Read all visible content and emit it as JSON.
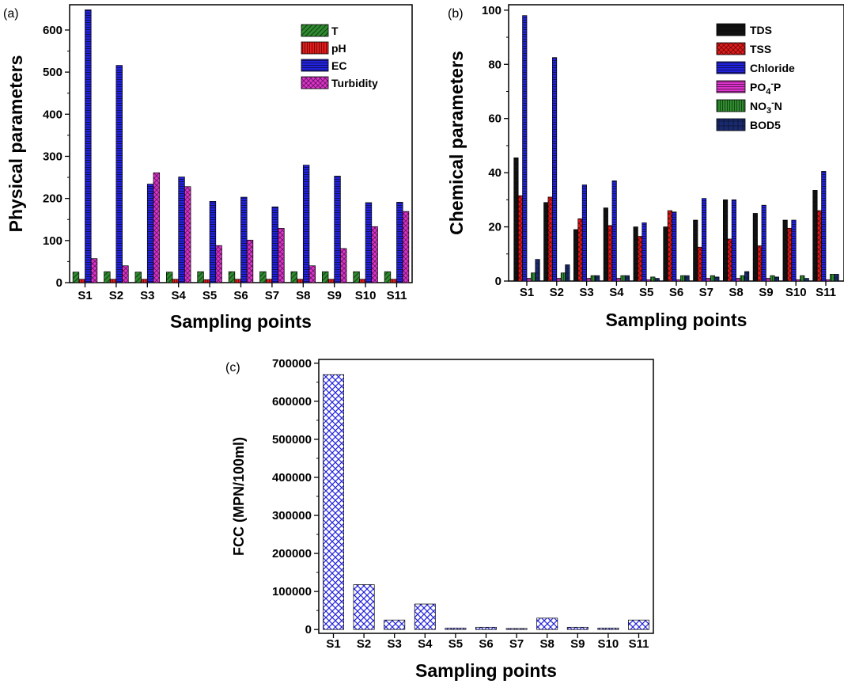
{
  "chart_data": [
    {
      "panel": "(a)",
      "type": "bar",
      "xlabel": "Sampling points",
      "ylabel": "Physical parameters",
      "ylim": [
        0,
        660
      ],
      "yticks": [
        0,
        100,
        200,
        300,
        400,
        500,
        600
      ],
      "categories": [
        "S1",
        "S2",
        "S3",
        "S4",
        "S5",
        "S6",
        "S7",
        "S8",
        "S9",
        "S10",
        "S11"
      ],
      "legend_position": "top-right",
      "series": [
        {
          "name": "T",
          "color": "#2e8b2e",
          "values": [
            25,
            26,
            25,
            25,
            26,
            26,
            26,
            26,
            26,
            26,
            26
          ]
        },
        {
          "name": "pH",
          "color": "#e41a1a",
          "values": [
            8,
            8,
            8,
            8,
            7,
            8,
            8,
            8,
            8,
            8,
            8
          ]
        },
        {
          "name": "EC",
          "color": "#2222dd",
          "values": [
            648,
            516,
            234,
            251,
            193,
            203,
            180,
            279,
            253,
            190,
            191
          ]
        },
        {
          "name": "Turbidity",
          "color": "#dd33cc",
          "values": [
            57,
            40,
            261,
            228,
            88,
            101,
            129,
            40,
            81,
            133,
            169
          ]
        }
      ]
    },
    {
      "panel": "(b)",
      "type": "bar",
      "xlabel": "Sampling points",
      "ylabel": "Chemical parameters",
      "ylim": [
        0,
        102
      ],
      "yticks": [
        0,
        20,
        40,
        60,
        80,
        100
      ],
      "categories": [
        "S1",
        "S2",
        "S3",
        "S4",
        "S5",
        "S6",
        "S7",
        "S8",
        "S9",
        "S10",
        "S11"
      ],
      "legend_position": "top-right",
      "series": [
        {
          "name": "TDS",
          "color": "#111111",
          "values": [
            45.5,
            29,
            19,
            27,
            20,
            20,
            22.5,
            30,
            25,
            22.5,
            33.5
          ]
        },
        {
          "name": "TSS",
          "color": "#e41a1a",
          "values": [
            31.5,
            31,
            23,
            20.5,
            16.5,
            26,
            12.5,
            15.5,
            13,
            19.5,
            26
          ]
        },
        {
          "name": "Chloride",
          "color": "#2222dd",
          "values": [
            98,
            82.5,
            35.5,
            37,
            21.5,
            25.5,
            30.5,
            30,
            28,
            22.5,
            40.5
          ]
        },
        {
          "name": "PO4-P",
          "color": "#dd33cc",
          "values": [
            1,
            1,
            1,
            1,
            0.5,
            0.5,
            1,
            1,
            1,
            0.5,
            0.5
          ]
        },
        {
          "name": "NO3-N",
          "color": "#2e8b2e",
          "values": [
            3,
            3,
            2,
            2,
            1.5,
            2,
            2,
            2,
            2,
            2,
            2.5
          ]
        },
        {
          "name": "BOD5",
          "color": "#1a2a6e",
          "values": [
            8,
            6,
            2,
            2,
            1,
            2,
            1.5,
            3.5,
            1.5,
            1,
            2.5
          ]
        }
      ]
    },
    {
      "panel": "(c)",
      "type": "bar",
      "xlabel": "Sampling points",
      "ylabel": "FCC (MPN/100ml)",
      "ylim": [
        -10000,
        710000
      ],
      "yticks": [
        0,
        100000,
        200000,
        300000,
        400000,
        500000,
        600000,
        700000
      ],
      "categories": [
        "S1",
        "S2",
        "S3",
        "S4",
        "S5",
        "S6",
        "S7",
        "S8",
        "S9",
        "S10",
        "S11"
      ],
      "series": [
        {
          "name": "FCC",
          "color": "#2222dd",
          "values": [
            670000,
            118000,
            25000,
            67000,
            4000,
            6000,
            3000,
            30000,
            6000,
            4000,
            25000
          ]
        }
      ]
    }
  ]
}
